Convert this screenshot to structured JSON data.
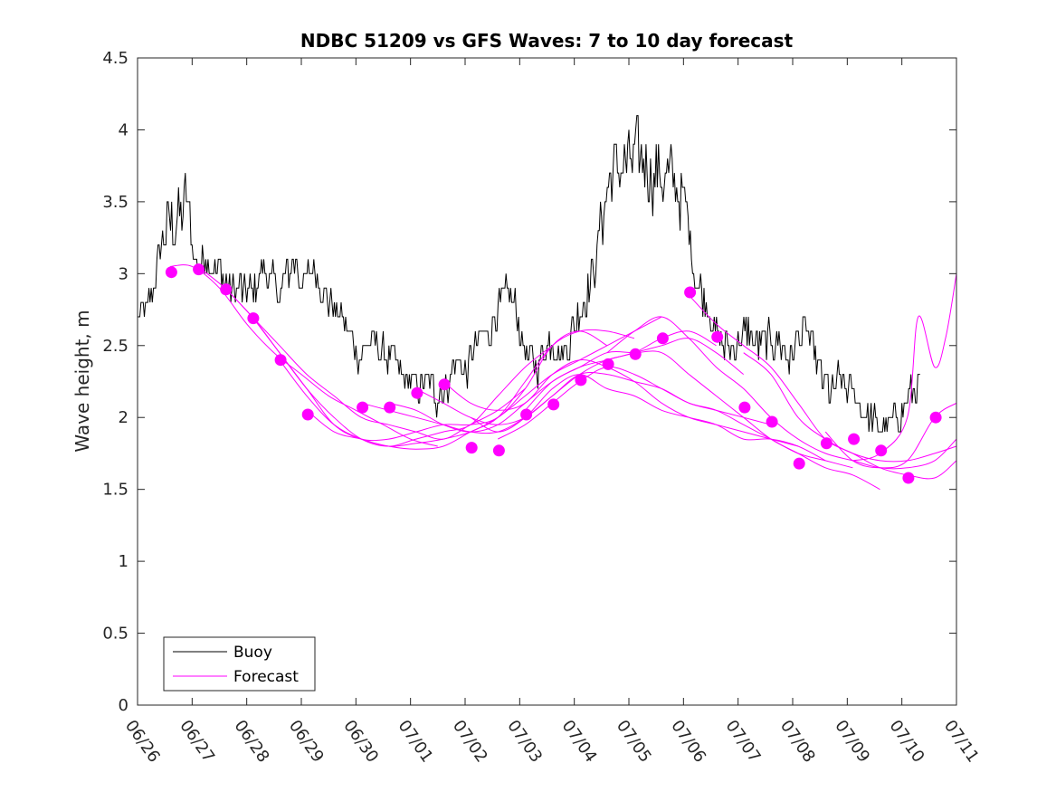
{
  "chart_data": {
    "type": "line",
    "title": "NDBC 51209 vs GFS Waves: 7 to 10 day forecast",
    "xlabel": "",
    "ylabel": "Wave height, m",
    "xlim": [
      0,
      15
    ],
    "ylim": [
      0,
      4.5
    ],
    "x_units": "days since 06/26",
    "x_tick_labels": [
      "06/26",
      "06/27",
      "06/28",
      "06/29",
      "06/30",
      "07/01",
      "07/02",
      "07/03",
      "07/04",
      "07/05",
      "07/06",
      "07/07",
      "07/08",
      "07/09",
      "07/10",
      "07/11"
    ],
    "y_ticks": [
      0,
      0.5,
      1,
      1.5,
      2,
      2.5,
      3,
      3.5,
      4,
      4.5
    ],
    "y_tick_labels": [
      "0",
      "0.5",
      "1",
      "1.5",
      "2",
      "2.5",
      "3",
      "3.5",
      "4",
      "4.5"
    ],
    "grid": false,
    "legend": {
      "position": "bottom-left",
      "entries": [
        {
          "label": "Buoy",
          "color": "#000000"
        },
        {
          "label": "Forecast",
          "color": "#ff00ff"
        }
      ]
    },
    "colors": {
      "buoy": "#000000",
      "forecast": "#ff00ff"
    },
    "buoy_anchors": [
      [
        0.0,
        2.7
      ],
      [
        0.2,
        2.75
      ],
      [
        0.35,
        3.0
      ],
      [
        0.5,
        3.3
      ],
      [
        0.65,
        3.35
      ],
      [
        0.8,
        3.4
      ],
      [
        0.9,
        3.5
      ],
      [
        1.0,
        3.2
      ],
      [
        1.1,
        3.0
      ],
      [
        1.25,
        3.15
      ],
      [
        1.4,
        3.05
      ],
      [
        1.55,
        3.0
      ],
      [
        1.7,
        2.85
      ],
      [
        1.85,
        2.9
      ],
      [
        2.0,
        2.85
      ],
      [
        2.15,
        2.9
      ],
      [
        2.3,
        3.05
      ],
      [
        2.45,
        2.95
      ],
      [
        2.6,
        2.85
      ],
      [
        2.75,
        3.0
      ],
      [
        2.9,
        3.1
      ],
      [
        3.05,
        2.9
      ],
      [
        3.2,
        3.05
      ],
      [
        3.35,
        2.95
      ],
      [
        3.5,
        2.8
      ],
      [
        3.6,
        2.75
      ],
      [
        3.75,
        2.7
      ],
      [
        3.9,
        2.55
      ],
      [
        4.05,
        2.45
      ],
      [
        4.2,
        2.5
      ],
      [
        4.35,
        2.5
      ],
      [
        4.5,
        2.45
      ],
      [
        4.65,
        2.4
      ],
      [
        4.8,
        2.3
      ],
      [
        4.95,
        2.25
      ],
      [
        5.1,
        2.2
      ],
      [
        5.3,
        2.25
      ],
      [
        5.45,
        2.15
      ],
      [
        5.6,
        2.2
      ],
      [
        5.75,
        2.3
      ],
      [
        5.9,
        2.4
      ],
      [
        6.0,
        2.3
      ],
      [
        6.15,
        2.45
      ],
      [
        6.3,
        2.55
      ],
      [
        6.45,
        2.6
      ],
      [
        6.6,
        2.75
      ],
      [
        6.75,
        2.85
      ],
      [
        6.9,
        2.8
      ],
      [
        7.0,
        2.6
      ],
      [
        7.15,
        2.4
      ],
      [
        7.3,
        2.35
      ],
      [
        7.45,
        2.5
      ],
      [
        7.6,
        2.55
      ],
      [
        7.75,
        2.45
      ],
      [
        7.9,
        2.5
      ],
      [
        8.05,
        2.7
      ],
      [
        8.2,
        2.85
      ],
      [
        8.35,
        3.0
      ],
      [
        8.5,
        3.4
      ],
      [
        8.65,
        3.65
      ],
      [
        8.8,
        3.75
      ],
      [
        8.95,
        3.75
      ],
      [
        9.1,
        3.8
      ],
      [
        9.25,
        3.8
      ],
      [
        9.4,
        3.7
      ],
      [
        9.55,
        3.7
      ],
      [
        9.7,
        3.65
      ],
      [
        9.85,
        3.6
      ],
      [
        10.0,
        3.5
      ],
      [
        10.1,
        3.3
      ],
      [
        10.2,
        3.0
      ],
      [
        10.35,
        2.85
      ],
      [
        10.5,
        2.75
      ],
      [
        10.6,
        2.55
      ],
      [
        10.75,
        2.5
      ],
      [
        10.9,
        2.5
      ],
      [
        11.05,
        2.55
      ],
      [
        11.2,
        2.6
      ],
      [
        11.35,
        2.5
      ],
      [
        11.5,
        2.5
      ],
      [
        11.65,
        2.55
      ],
      [
        11.8,
        2.5
      ],
      [
        11.95,
        2.4
      ],
      [
        12.1,
        2.55
      ],
      [
        12.25,
        2.6
      ],
      [
        12.4,
        2.45
      ],
      [
        12.55,
        2.25
      ],
      [
        12.7,
        2.15
      ],
      [
        12.85,
        2.25
      ],
      [
        13.0,
        2.2
      ],
      [
        13.15,
        2.15
      ],
      [
        13.3,
        2.05
      ],
      [
        13.45,
        2.0
      ],
      [
        13.6,
        1.9
      ],
      [
        13.75,
        1.95
      ],
      [
        13.9,
        2.0
      ],
      [
        14.05,
        2.1
      ],
      [
        14.2,
        2.15
      ],
      [
        14.35,
        2.25
      ]
    ],
    "forecast_series": [
      [
        [
          0.6,
          3.05
        ],
        [
          1.0,
          3.05
        ],
        [
          1.5,
          2.9
        ],
        [
          2.0,
          2.65
        ],
        [
          2.5,
          2.45
        ],
        [
          3.0,
          2.3
        ],
        [
          3.5,
          2.15
        ],
        [
          4.0,
          2.05
        ],
        [
          4.5,
          1.95
        ],
        [
          5.0,
          1.85
        ],
        [
          5.5,
          1.8
        ]
      ],
      [
        [
          1.1,
          3.05
        ],
        [
          1.6,
          2.9
        ],
        [
          2.1,
          2.7
        ],
        [
          2.6,
          2.5
        ],
        [
          3.1,
          2.3
        ],
        [
          3.6,
          2.15
        ],
        [
          4.1,
          2.0
        ],
        [
          4.6,
          1.95
        ],
        [
          5.1,
          1.9
        ],
        [
          5.6,
          1.85
        ],
        [
          6.1,
          1.95
        ],
        [
          6.6,
          2.05
        ],
        [
          7.1,
          2.2
        ]
      ],
      [
        [
          1.6,
          2.9
        ],
        [
          2.1,
          2.7
        ],
        [
          2.6,
          2.45
        ],
        [
          3.1,
          2.2
        ],
        [
          3.6,
          2.0
        ],
        [
          4.1,
          1.85
        ],
        [
          4.6,
          1.8
        ],
        [
          5.1,
          1.85
        ],
        [
          5.6,
          1.9
        ],
        [
          6.1,
          1.95
        ],
        [
          6.6,
          2.15
        ],
        [
          7.1,
          2.35
        ],
        [
          7.6,
          2.5
        ]
      ],
      [
        [
          2.1,
          2.7
        ],
        [
          2.6,
          2.45
        ],
        [
          3.1,
          2.2
        ],
        [
          3.6,
          1.95
        ],
        [
          4.1,
          1.85
        ],
        [
          4.6,
          1.85
        ],
        [
          5.1,
          1.9
        ],
        [
          5.6,
          1.95
        ],
        [
          6.1,
          1.95
        ],
        [
          6.6,
          2.0
        ],
        [
          7.1,
          2.2
        ],
        [
          7.6,
          2.5
        ],
        [
          8.1,
          2.6
        ],
        [
          8.6,
          2.5
        ]
      ],
      [
        [
          2.6,
          2.4
        ],
        [
          3.1,
          2.15
        ],
        [
          3.6,
          1.95
        ],
        [
          4.1,
          1.85
        ],
        [
          4.6,
          1.8
        ],
        [
          5.1,
          1.78
        ],
        [
          5.6,
          1.8
        ],
        [
          6.1,
          1.9
        ],
        [
          6.6,
          2.0
        ],
        [
          7.1,
          2.25
        ],
        [
          7.6,
          2.5
        ],
        [
          8.1,
          2.6
        ],
        [
          8.6,
          2.6
        ],
        [
          9.1,
          2.55
        ]
      ],
      [
        [
          3.1,
          2.05
        ],
        [
          3.6,
          1.9
        ],
        [
          4.1,
          1.85
        ],
        [
          4.6,
          1.8
        ],
        [
          5.1,
          1.82
        ],
        [
          5.6,
          1.85
        ],
        [
          6.1,
          1.9
        ],
        [
          6.6,
          2.0
        ],
        [
          7.1,
          2.15
        ],
        [
          7.6,
          2.3
        ],
        [
          8.1,
          2.4
        ],
        [
          8.6,
          2.5
        ],
        [
          9.1,
          2.6
        ],
        [
          9.6,
          2.7
        ]
      ],
      [
        [
          4.1,
          2.1
        ],
        [
          4.6,
          2.05
        ],
        [
          5.1,
          2.0
        ],
        [
          5.6,
          1.95
        ],
        [
          6.1,
          1.9
        ],
        [
          6.6,
          1.9
        ],
        [
          7.1,
          2.0
        ],
        [
          7.6,
          2.15
        ],
        [
          8.1,
          2.3
        ],
        [
          8.6,
          2.4
        ],
        [
          9.1,
          2.45
        ],
        [
          9.6,
          2.55
        ],
        [
          10.1,
          2.6
        ],
        [
          10.6,
          2.5
        ]
      ],
      [
        [
          4.6,
          2.1
        ],
        [
          5.1,
          2.05
        ],
        [
          5.6,
          1.95
        ],
        [
          6.1,
          1.9
        ],
        [
          6.6,
          1.95
        ],
        [
          7.1,
          2.1
        ],
        [
          7.6,
          2.25
        ],
        [
          8.1,
          2.35
        ],
        [
          8.6,
          2.4
        ],
        [
          9.1,
          2.45
        ],
        [
          9.6,
          2.5
        ],
        [
          10.1,
          2.55
        ],
        [
          10.6,
          2.45
        ],
        [
          11.1,
          2.3
        ]
      ],
      [
        [
          5.1,
          2.2
        ],
        [
          5.6,
          2.1
        ],
        [
          6.1,
          2.0
        ],
        [
          6.6,
          1.95
        ],
        [
          7.1,
          2.0
        ],
        [
          7.6,
          2.15
        ],
        [
          8.1,
          2.3
        ],
        [
          8.6,
          2.3
        ],
        [
          9.1,
          2.25
        ],
        [
          9.6,
          2.2
        ],
        [
          10.1,
          2.1
        ],
        [
          10.6,
          2.05
        ],
        [
          11.1,
          2.0
        ],
        [
          11.6,
          1.95
        ]
      ],
      [
        [
          5.6,
          2.25
        ],
        [
          6.1,
          2.1
        ],
        [
          6.6,
          2.05
        ],
        [
          7.1,
          2.1
        ],
        [
          7.6,
          2.3
        ],
        [
          8.1,
          2.4
        ],
        [
          8.6,
          2.35
        ],
        [
          9.1,
          2.25
        ],
        [
          9.6,
          2.1
        ],
        [
          10.1,
          2.0
        ],
        [
          10.6,
          1.95
        ],
        [
          11.1,
          1.9
        ],
        [
          11.6,
          1.85
        ],
        [
          12.1,
          1.8
        ]
      ],
      [
        [
          6.1,
          2.0
        ],
        [
          6.6,
          1.9
        ],
        [
          7.1,
          2.0
        ],
        [
          7.6,
          2.2
        ],
        [
          8.1,
          2.3
        ],
        [
          8.6,
          2.2
        ],
        [
          9.1,
          2.15
        ],
        [
          9.6,
          2.05
        ],
        [
          10.1,
          2.0
        ],
        [
          10.6,
          1.95
        ],
        [
          11.1,
          1.85
        ],
        [
          11.6,
          1.85
        ],
        [
          12.1,
          1.8
        ],
        [
          12.6,
          1.7
        ]
      ],
      [
        [
          6.6,
          1.85
        ],
        [
          7.1,
          1.95
        ],
        [
          7.6,
          2.1
        ],
        [
          8.1,
          2.25
        ],
        [
          8.6,
          2.35
        ],
        [
          9.1,
          2.3
        ],
        [
          9.6,
          2.2
        ],
        [
          10.1,
          2.1
        ],
        [
          10.6,
          2.05
        ],
        [
          11.1,
          1.95
        ],
        [
          11.6,
          1.85
        ],
        [
          12.1,
          1.75
        ],
        [
          12.6,
          1.7
        ],
        [
          13.1,
          1.65
        ]
      ],
      [
        [
          7.1,
          2.05
        ],
        [
          7.6,
          2.25
        ],
        [
          8.1,
          2.35
        ],
        [
          8.6,
          2.45
        ],
        [
          9.1,
          2.45
        ],
        [
          9.6,
          2.45
        ],
        [
          10.1,
          2.3
        ],
        [
          10.6,
          2.15
        ],
        [
          11.1,
          2.0
        ],
        [
          11.6,
          1.85
        ],
        [
          12.1,
          1.75
        ],
        [
          12.6,
          1.65
        ],
        [
          13.1,
          1.6
        ],
        [
          13.6,
          1.5
        ]
      ],
      [
        [
          8.6,
          2.45
        ],
        [
          9.1,
          2.6
        ],
        [
          9.6,
          2.7
        ],
        [
          10.1,
          2.55
        ],
        [
          10.6,
          2.35
        ],
        [
          11.1,
          2.2
        ],
        [
          11.6,
          2.0
        ],
        [
          12.1,
          1.85
        ],
        [
          12.6,
          1.75
        ],
        [
          13.1,
          1.7
        ],
        [
          13.6,
          1.65
        ],
        [
          14.1,
          1.65
        ],
        [
          14.6,
          1.7
        ],
        [
          15.0,
          1.85
        ]
      ],
      [
        [
          10.1,
          2.85
        ],
        [
          10.6,
          2.65
        ],
        [
          11.1,
          2.5
        ],
        [
          11.6,
          2.35
        ],
        [
          12.1,
          2.1
        ],
        [
          12.6,
          1.85
        ],
        [
          13.1,
          1.75
        ],
        [
          13.6,
          1.65
        ],
        [
          14.1,
          1.6
        ],
        [
          14.6,
          1.58
        ],
        [
          15.0,
          1.7
        ]
      ],
      [
        [
          11.1,
          2.45
        ],
        [
          11.6,
          2.3
        ],
        [
          12.1,
          2.0
        ],
        [
          12.6,
          1.85
        ],
        [
          13.1,
          1.75
        ],
        [
          13.6,
          1.7
        ],
        [
          14.1,
          1.7
        ],
        [
          14.6,
          1.75
        ],
        [
          15.0,
          1.8
        ]
      ],
      [
        [
          12.6,
          1.9
        ],
        [
          13.1,
          1.7
        ],
        [
          13.6,
          1.65
        ],
        [
          14.1,
          1.7
        ],
        [
          14.6,
          2.0
        ],
        [
          15.0,
          2.1
        ]
      ],
      [
        [
          13.1,
          1.7
        ],
        [
          13.6,
          1.75
        ],
        [
          14.1,
          2.0
        ],
        [
          14.3,
          2.7
        ],
        [
          14.6,
          2.35
        ],
        [
          14.8,
          2.55
        ],
        [
          15.0,
          3.0
        ]
      ]
    ],
    "forecast_points": [
      [
        0.62,
        3.01
      ],
      [
        1.12,
        3.03
      ],
      [
        1.62,
        2.89
      ],
      [
        2.12,
        2.69
      ],
      [
        2.62,
        2.4
      ],
      [
        3.12,
        2.02
      ],
      [
        4.12,
        2.07
      ],
      [
        4.62,
        2.07
      ],
      [
        5.12,
        2.17
      ],
      [
        5.62,
        2.23
      ],
      [
        6.12,
        1.79
      ],
      [
        6.62,
        1.77
      ],
      [
        7.12,
        2.02
      ],
      [
        7.62,
        2.09
      ],
      [
        8.12,
        2.26
      ],
      [
        8.62,
        2.37
      ],
      [
        9.12,
        2.44
      ],
      [
        9.62,
        2.55
      ],
      [
        10.12,
        2.87
      ],
      [
        10.62,
        2.56
      ],
      [
        11.12,
        2.07
      ],
      [
        11.62,
        1.97
      ],
      [
        12.12,
        1.68
      ],
      [
        12.62,
        1.82
      ],
      [
        13.12,
        1.85
      ],
      [
        13.62,
        1.77
      ],
      [
        14.12,
        1.58
      ],
      [
        14.62,
        2.0
      ]
    ]
  }
}
